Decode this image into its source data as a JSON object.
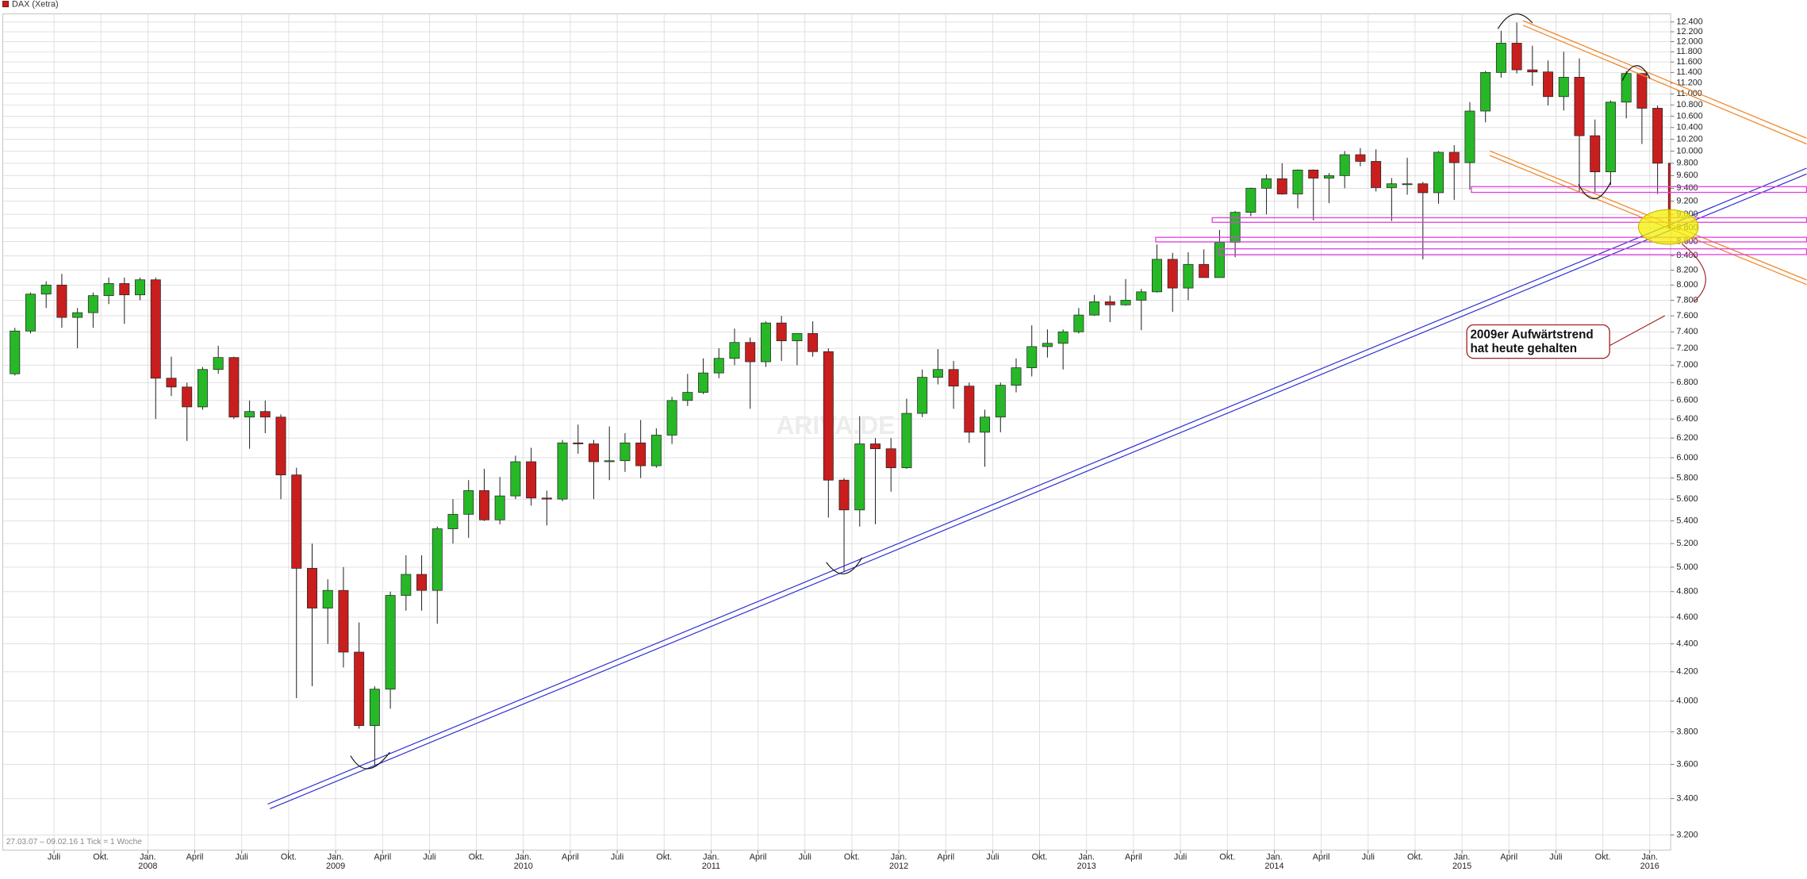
{
  "chart_data": {
    "type": "candlestick",
    "title": "DAX (Xetra)",
    "footer": "27.03.07 – 09.02.16   1 Tick = 1 Woche",
    "watermark": "ARIVA.DE",
    "annotation": [
      "2009er Aufwärtstrend",
      "hat heute gehalten"
    ],
    "log_scale": true,
    "grid": true,
    "up_color": "#27b827",
    "down_color": "#c81e1e",
    "xlim": [
      "2007-03",
      "2016-03"
    ],
    "ylim": [
      3120,
      12570
    ],
    "x": [
      "2007-04",
      "2007-05",
      "2007-06",
      "2007-07",
      "2007-08",
      "2007-09",
      "2007-10",
      "2007-11",
      "2007-12",
      "2008-01",
      "2008-02",
      "2008-03",
      "2008-04",
      "2008-05",
      "2008-06",
      "2008-07",
      "2008-08",
      "2008-09",
      "2008-10",
      "2008-11",
      "2008-12",
      "2009-01",
      "2009-02",
      "2009-03",
      "2009-04",
      "2009-05",
      "2009-06",
      "2009-07",
      "2009-08",
      "2009-09",
      "2009-10",
      "2009-11",
      "2009-12",
      "2010-01",
      "2010-02",
      "2010-03",
      "2010-04",
      "2010-05",
      "2010-06",
      "2010-07",
      "2010-08",
      "2010-09",
      "2010-10",
      "2010-11",
      "2010-12",
      "2011-01",
      "2011-02",
      "2011-03",
      "2011-04",
      "2011-05",
      "2011-06",
      "2011-07",
      "2011-08",
      "2011-09",
      "2011-10",
      "2011-11",
      "2011-12",
      "2012-01",
      "2012-02",
      "2012-03",
      "2012-04",
      "2012-05",
      "2012-06",
      "2012-07",
      "2012-08",
      "2012-09",
      "2012-10",
      "2012-11",
      "2012-12",
      "2013-01",
      "2013-02",
      "2013-03",
      "2013-04",
      "2013-05",
      "2013-06",
      "2013-07",
      "2013-08",
      "2013-09",
      "2013-10",
      "2013-11",
      "2013-12",
      "2014-01",
      "2014-02",
      "2014-03",
      "2014-04",
      "2014-05",
      "2014-06",
      "2014-07",
      "2014-08",
      "2014-09",
      "2014-10",
      "2014-11",
      "2014-12",
      "2015-01",
      "2015-02",
      "2015-03",
      "2015-04",
      "2015-05",
      "2015-06",
      "2015-07",
      "2015-08",
      "2015-09",
      "2015-10",
      "2015-11",
      "2015-12",
      "2016-01",
      "2016-02"
    ],
    "open": [
      6900,
      7410,
      7880,
      8000,
      7580,
      7640,
      7860,
      8020,
      7870,
      8070,
      6850,
      6750,
      6530,
      6950,
      7090,
      6420,
      6480,
      6420,
      5830,
      4990,
      4670,
      4810,
      4340,
      3840,
      4080,
      4770,
      4940,
      4810,
      5330,
      5460,
      5680,
      5410,
      5630,
      5960,
      5610,
      5600,
      6150,
      6140,
      5960,
      5970,
      6150,
      5920,
      6230,
      6600,
      6690,
      6910,
      7080,
      7270,
      7040,
      7510,
      7290,
      7380,
      7160,
      5780,
      5500,
      6140,
      6090,
      5900,
      6460,
      6860,
      6950,
      6760,
      6260,
      6420,
      6770,
      6970,
      7220,
      7260,
      7400,
      7610,
      7780,
      7740,
      7800,
      7910,
      8350,
      7960,
      8280,
      8100,
      8590,
      9030,
      9400,
      9550,
      9310,
      9690,
      9560,
      9600,
      9940,
      9830,
      9410,
      9470,
      9470,
      9330,
      9980,
      9810,
      10690,
      11400,
      11970,
      11450,
      11410,
      10950,
      11310,
      10260,
      9660,
      10850,
      11380,
      10740,
      9800
    ],
    "high": [
      7450,
      7900,
      8050,
      8150,
      7700,
      7900,
      8100,
      8100,
      8100,
      8100,
      7100,
      6800,
      6980,
      7230,
      7100,
      6600,
      6600,
      6450,
      5900,
      5200,
      4900,
      5000,
      4560,
      4100,
      4800,
      5100,
      5100,
      5350,
      5600,
      5780,
      5890,
      5810,
      6020,
      6100,
      5680,
      6180,
      6340,
      6180,
      6320,
      6250,
      6390,
      6300,
      6640,
      6900,
      7080,
      7200,
      7440,
      7330,
      7530,
      7600,
      7380,
      7530,
      7200,
      5800,
      6430,
      6200,
      6200,
      6620,
      6950,
      7190,
      7050,
      6800,
      6500,
      6800,
      7080,
      7480,
      7430,
      7430,
      7700,
      7870,
      7860,
      8080,
      7950,
      8560,
      8440,
      8450,
      8490,
      8770,
      9050,
      9410,
      9620,
      9800,
      9700,
      9700,
      9640,
      10000,
      10050,
      10030,
      9560,
      9890,
      9500,
      10000,
      10100,
      10850,
      11430,
      12220,
      12390,
      11920,
      11630,
      11800,
      11670,
      10540,
      10880,
      11430,
      11380,
      10790,
      9860
    ],
    "low": [
      6880,
      7380,
      7700,
      7450,
      7200,
      7450,
      7750,
      7500,
      7800,
      6400,
      6650,
      6170,
      6500,
      6900,
      6400,
      6090,
      6250,
      5600,
      4020,
      4100,
      4400,
      4230,
      3820,
      3590,
      3950,
      4650,
      4650,
      4550,
      5200,
      5250,
      5400,
      5370,
      5600,
      5540,
      5360,
      5580,
      6040,
      5600,
      5780,
      5860,
      5800,
      5900,
      6140,
      6540,
      6670,
      6850,
      7000,
      6510,
      6980,
      7050,
      7000,
      7100,
      5430,
      4960,
      5350,
      5370,
      5670,
      5890,
      6420,
      6780,
      6510,
      6150,
      5910,
      6260,
      6690,
      6870,
      7090,
      6950,
      7380,
      7600,
      7520,
      7730,
      7420,
      7900,
      7650,
      7800,
      8100,
      8100,
      8380,
      8970,
      9000,
      9300,
      9090,
      8910,
      9170,
      9400,
      9750,
      9350,
      8900,
      9300,
      8350,
      9160,
      9220,
      9380,
      10490,
      11300,
      11380,
      11150,
      10790,
      10700,
      9340,
      9330,
      9450,
      10560,
      10120,
      9310,
      8700
    ],
    "close": [
      7410,
      7880,
      8000,
      7580,
      7640,
      7860,
      8020,
      7870,
      8070,
      6850,
      6750,
      6530,
      6950,
      7090,
      6420,
      6480,
      6420,
      5830,
      4990,
      4670,
      4810,
      4340,
      3840,
      4080,
      4770,
      4940,
      4810,
      5330,
      5460,
      5680,
      5410,
      5630,
      5960,
      5610,
      5600,
      6150,
      6140,
      5960,
      5970,
      6150,
      5920,
      6230,
      6600,
      6690,
      6910,
      7080,
      7270,
      7040,
      7510,
      7290,
      7380,
      7160,
      5780,
      5500,
      6140,
      6090,
      5900,
      6460,
      6860,
      6950,
      6760,
      6260,
      6420,
      6770,
      6970,
      7220,
      7260,
      7400,
      7610,
      7780,
      7740,
      7800,
      7910,
      8350,
      7960,
      8280,
      8100,
      8590,
      9030,
      9400,
      9550,
      9310,
      9690,
      9560,
      9600,
      9940,
      9830,
      9410,
      9470,
      9470,
      9330,
      9980,
      9810,
      10690,
      11400,
      11970,
      11450,
      11410,
      10950,
      11310,
      10260,
      9660,
      10850,
      11380,
      10740,
      9800,
      8800
    ],
    "xticks": [
      {
        "value": "2007-07",
        "label": "Juli"
      },
      {
        "value": "2007-10",
        "label": "Okt."
      },
      {
        "value": "2008-01",
        "label": "Jan."
      },
      {
        "value": "2008-04",
        "label": "April"
      },
      {
        "value": "2008-07",
        "label": "Juli"
      },
      {
        "value": "2008-10",
        "label": "Okt."
      },
      {
        "value": "2009-01",
        "label": "Jan."
      },
      {
        "value": "2009-04",
        "label": "April"
      },
      {
        "value": "2009-07",
        "label": "Juli"
      },
      {
        "value": "2009-10",
        "label": "Okt."
      },
      {
        "value": "2010-01",
        "label": "Jan."
      },
      {
        "value": "2010-04",
        "label": "April"
      },
      {
        "value": "2010-07",
        "label": "Juli"
      },
      {
        "value": "2010-10",
        "label": "Okt."
      },
      {
        "value": "2011-01",
        "label": "Jan."
      },
      {
        "value": "2011-04",
        "label": "April"
      },
      {
        "value": "2011-07",
        "label": "Juli"
      },
      {
        "value": "2011-10",
        "label": "Okt."
      },
      {
        "value": "2012-01",
        "label": "Jan."
      },
      {
        "value": "2012-04",
        "label": "April"
      },
      {
        "value": "2012-07",
        "label": "Juli"
      },
      {
        "value": "2012-10",
        "label": "Okt."
      },
      {
        "value": "2013-01",
        "label": "Jan."
      },
      {
        "value": "2013-04",
        "label": "April"
      },
      {
        "value": "2013-07",
        "label": "Juli"
      },
      {
        "value": "2013-10",
        "label": "Okt."
      },
      {
        "value": "2014-01",
        "label": "Jan."
      },
      {
        "value": "2014-04",
        "label": "April"
      },
      {
        "value": "2014-07",
        "label": "Juli"
      },
      {
        "value": "2014-10",
        "label": "Okt."
      },
      {
        "value": "2015-01",
        "label": "Jan."
      },
      {
        "value": "2015-04",
        "label": "April"
      },
      {
        "value": "2015-07",
        "label": "Juli"
      },
      {
        "value": "2015-10",
        "label": "Okt."
      },
      {
        "value": "2016-01",
        "label": "Jan."
      }
    ],
    "xtick_years": [
      {
        "value": "2008-01",
        "label": "2008"
      },
      {
        "value": "2009-01",
        "label": "2009"
      },
      {
        "value": "2010-01",
        "label": "2010"
      },
      {
        "value": "2011-01",
        "label": "2011"
      },
      {
        "value": "2012-01",
        "label": "2012"
      },
      {
        "value": "2013-01",
        "label": "2013"
      },
      {
        "value": "2014-01",
        "label": "2014"
      },
      {
        "value": "2015-01",
        "label": "2015"
      },
      {
        "value": "2016-01",
        "label": "2016"
      }
    ],
    "yticks": [
      {
        "value": 3200,
        "label": "3.200"
      },
      {
        "value": 3400,
        "label": "3.400"
      },
      {
        "value": 3600,
        "label": "3.600"
      },
      {
        "value": 3800,
        "label": "3.800"
      },
      {
        "value": 4000,
        "label": "4.000"
      },
      {
        "value": 4200,
        "label": "4.200"
      },
      {
        "value": 4400,
        "label": "4.400"
      },
      {
        "value": 4600,
        "label": "4.600"
      },
      {
        "value": 4800,
        "label": "4.800"
      },
      {
        "value": 5000,
        "label": "5.000"
      },
      {
        "value": 5200,
        "label": "5.200"
      },
      {
        "value": 5400,
        "label": "5.400"
      },
      {
        "value": 5600,
        "label": "5.600"
      },
      {
        "value": 5800,
        "label": "5.800"
      },
      {
        "value": 6000,
        "label": "6.000"
      },
      {
        "value": 6200,
        "label": "6.200"
      },
      {
        "value": 6400,
        "label": "6.400"
      },
      {
        "value": 6600,
        "label": "6.600"
      },
      {
        "value": 6800,
        "label": "6.800"
      },
      {
        "value": 7000,
        "label": "7.000"
      },
      {
        "value": 7200,
        "label": "7.200"
      },
      {
        "value": 7400,
        "label": "7.400"
      },
      {
        "value": 7600,
        "label": "7.600"
      },
      {
        "value": 7800,
        "label": "7.800"
      },
      {
        "value": 8000,
        "label": "8.000"
      },
      {
        "value": 8200,
        "label": "8.200"
      },
      {
        "value": 8400,
        "label": "8.400"
      },
      {
        "value": 8600,
        "label": "8.600"
      },
      {
        "value": 8800,
        "label": "8.800"
      },
      {
        "value": 9000,
        "label": "9.000"
      },
      {
        "value": 9200,
        "label": "9.200"
      },
      {
        "value": 9400,
        "label": "9.400"
      },
      {
        "value": 9600,
        "label": "9.600"
      },
      {
        "value": 9800,
        "label": "9.800"
      },
      {
        "value": 10000,
        "label": "10.000"
      },
      {
        "value": 10200,
        "label": "10.200"
      },
      {
        "value": 10400,
        "label": "10.400"
      },
      {
        "value": 10600,
        "label": "10.600"
      },
      {
        "value": 10800,
        "label": "10.800"
      },
      {
        "value": 11000,
        "label": "11.000"
      },
      {
        "value": 11200,
        "label": "11.200"
      },
      {
        "value": 11400,
        "label": "11.400"
      },
      {
        "value": 11600,
        "label": "11.600"
      },
      {
        "value": 11800,
        "label": "11.800"
      },
      {
        "value": 12000,
        "label": "12.000"
      },
      {
        "value": 12200,
        "label": "12.200"
      },
      {
        "value": 12400,
        "label": "12.400"
      }
    ]
  }
}
